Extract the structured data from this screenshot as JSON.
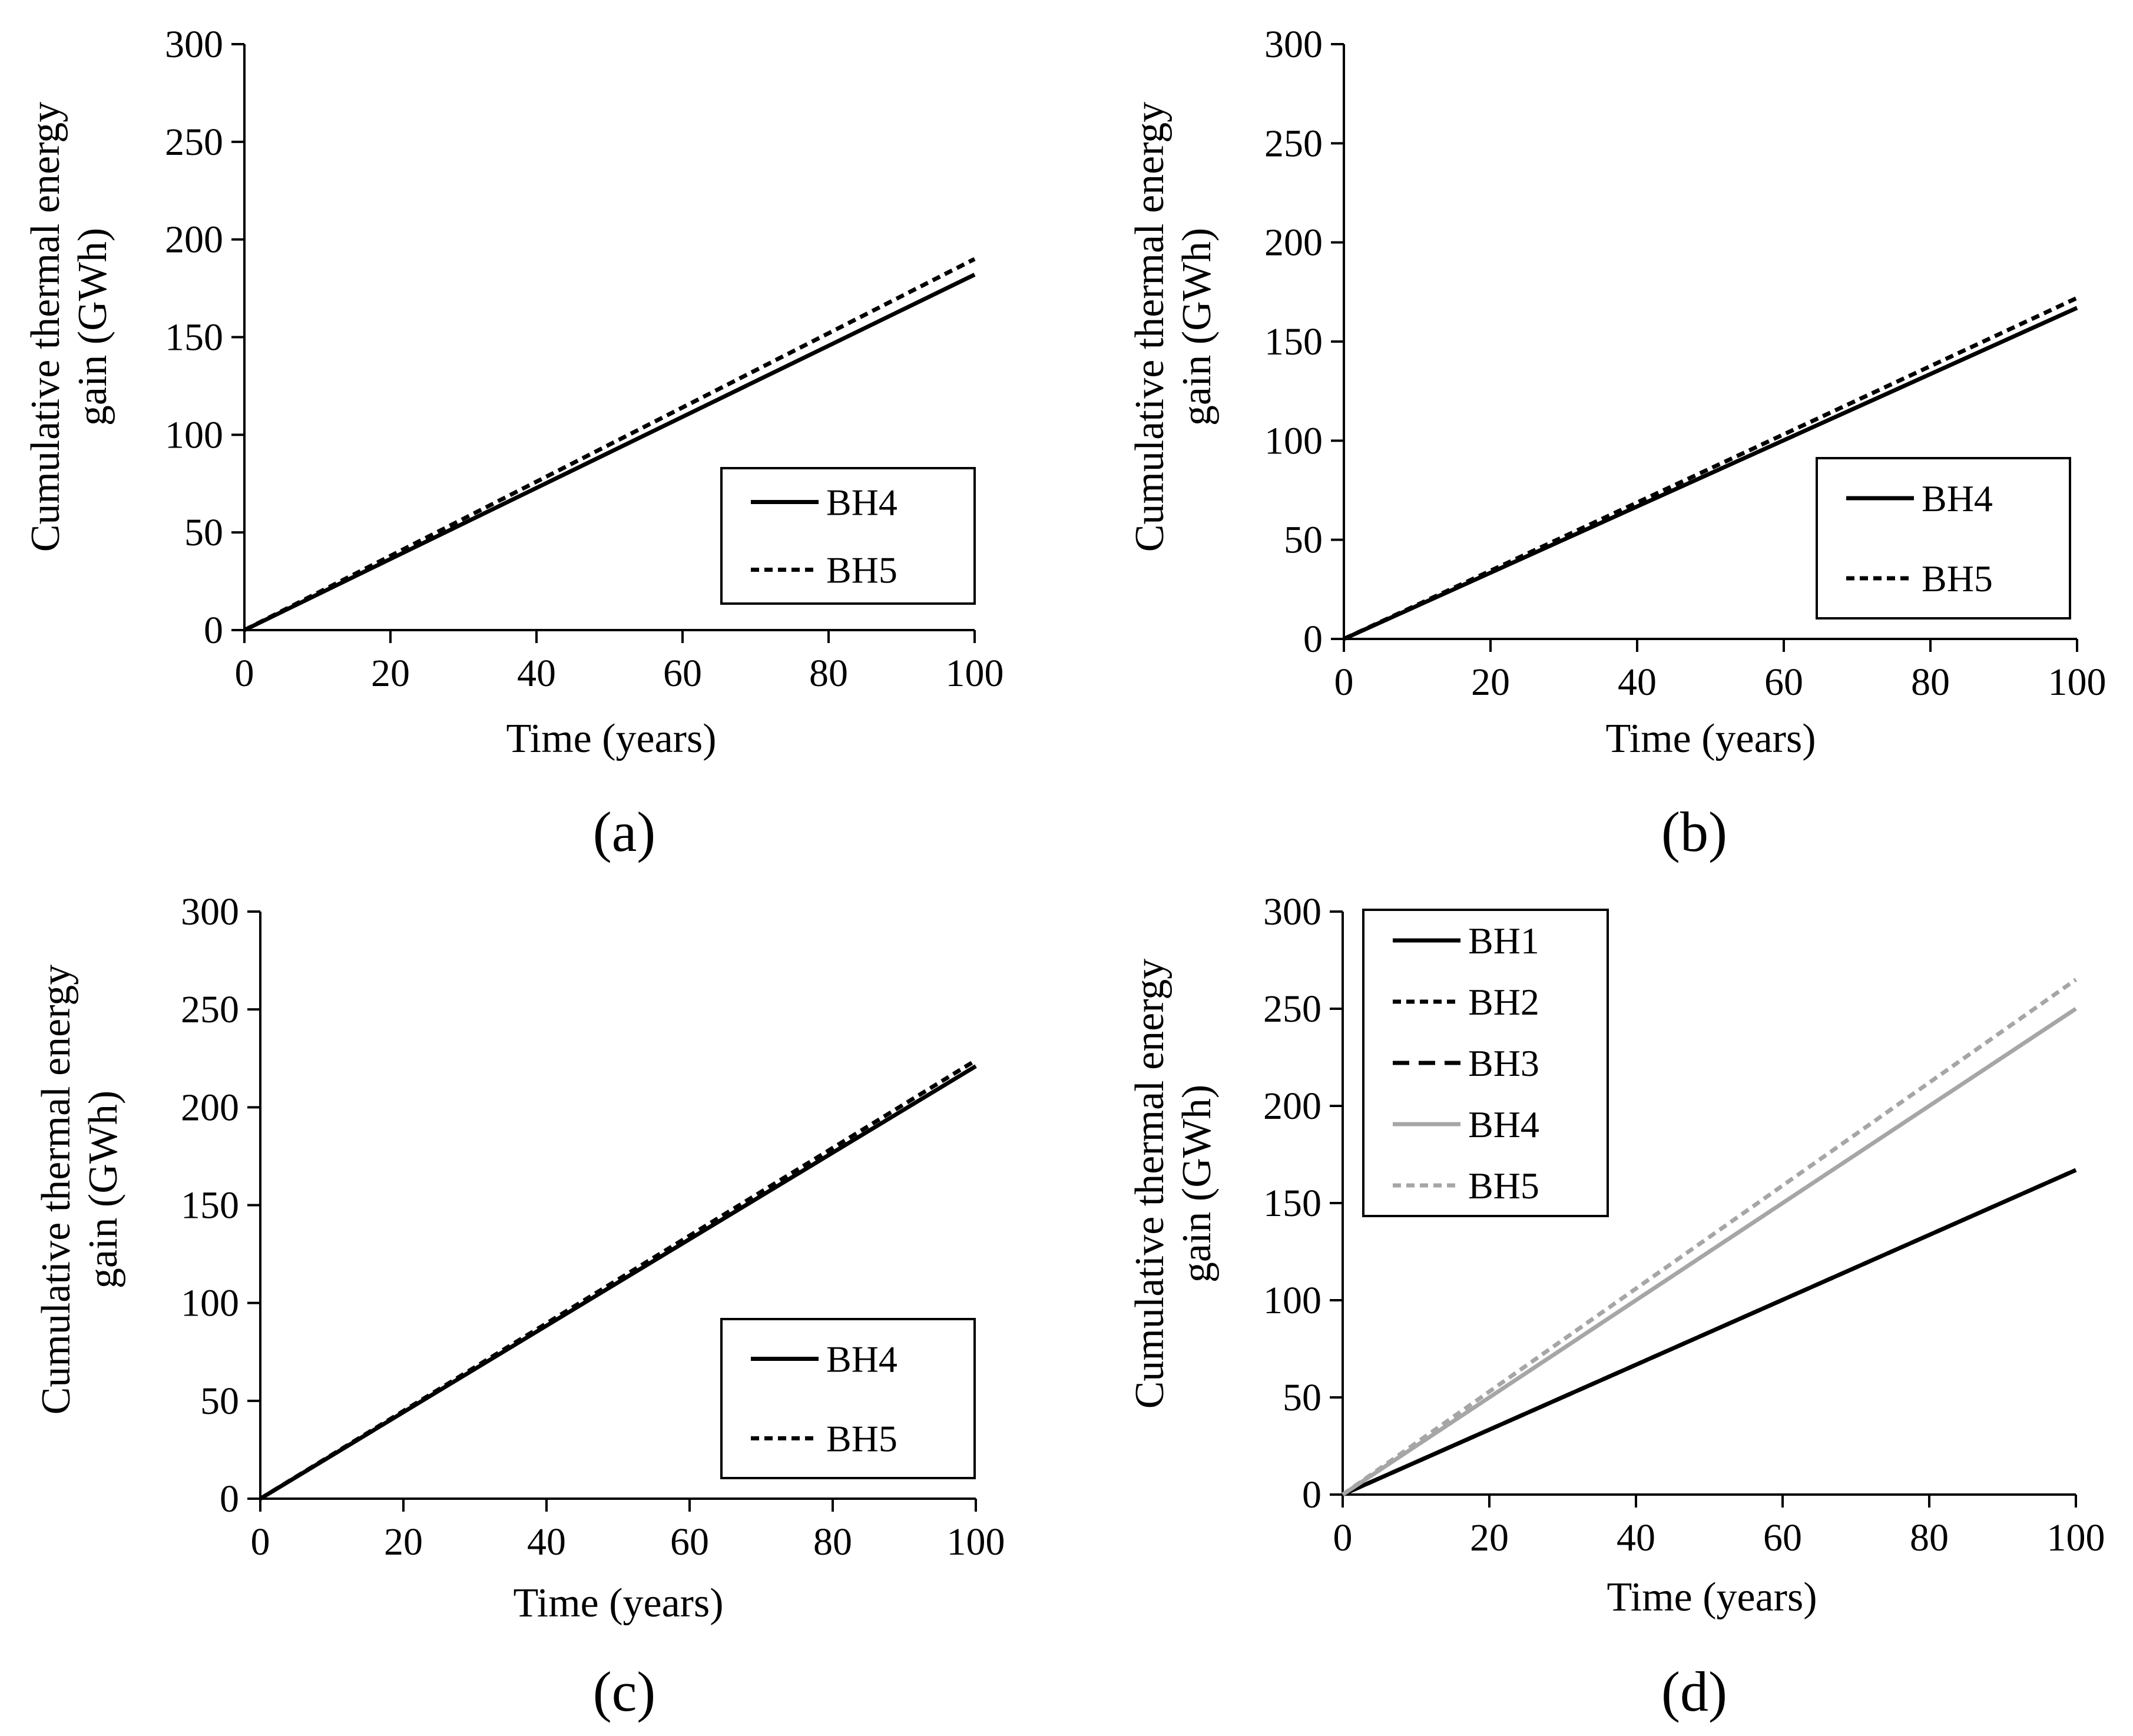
{
  "chart_data": [
    {
      "type": "line",
      "panel_label": "(a)",
      "xlabel": "Time (years)",
      "ylabel_lines": [
        "Cumulative thermal energy",
        "gain (GWh)"
      ],
      "xlim": [
        0,
        100
      ],
      "ylim": [
        0,
        300
      ],
      "xticks": [
        "0",
        "20",
        "40",
        "60",
        "80",
        "100"
      ],
      "yticks": [
        "0",
        "50",
        "100",
        "150",
        "200",
        "250",
        "300"
      ],
      "legend_position": "bottom-right",
      "series": [
        {
          "name": "BH4",
          "x": [
            0,
            100
          ],
          "y": [
            0,
            182
          ],
          "color": "#000000",
          "style": "solid"
        },
        {
          "name": "BH5",
          "x": [
            0,
            100
          ],
          "y": [
            0,
            190
          ],
          "color": "#000000",
          "style": "dotted"
        }
      ]
    },
    {
      "type": "line",
      "panel_label": "(b)",
      "xlabel": "Time (years)",
      "ylabel_lines": [
        "Cumulative thermal energy",
        "gain (GWh)"
      ],
      "xlim": [
        0,
        100
      ],
      "ylim": [
        0,
        300
      ],
      "xticks": [
        "0",
        "20",
        "40",
        "60",
        "80",
        "100"
      ],
      "yticks": [
        "0",
        "50",
        "100",
        "150",
        "200",
        "250",
        "300"
      ],
      "legend_position": "bottom-right",
      "series": [
        {
          "name": "BH4",
          "x": [
            0,
            100
          ],
          "y": [
            0,
            167
          ],
          "color": "#000000",
          "style": "solid"
        },
        {
          "name": "BH5",
          "x": [
            0,
            100
          ],
          "y": [
            0,
            172
          ],
          "color": "#000000",
          "style": "dotted"
        }
      ]
    },
    {
      "type": "line",
      "panel_label": "(c)",
      "xlabel": "Time (years)",
      "ylabel_lines": [
        "Cumulative thermal energy",
        "gain (GWh)"
      ],
      "xlim": [
        0,
        100
      ],
      "ylim": [
        0,
        300
      ],
      "xticks": [
        "0",
        "20",
        "40",
        "60",
        "80",
        "100"
      ],
      "yticks": [
        "0",
        "50",
        "100",
        "150",
        "200",
        "250",
        "300"
      ],
      "legend_position": "bottom-right",
      "series": [
        {
          "name": "BH4",
          "x": [
            0,
            100
          ],
          "y": [
            0,
            221
          ],
          "color": "#000000",
          "style": "solid"
        },
        {
          "name": "BH5",
          "x": [
            0,
            100
          ],
          "y": [
            0,
            224
          ],
          "color": "#000000",
          "style": "dotted"
        }
      ]
    },
    {
      "type": "line",
      "panel_label": "(d)",
      "xlabel": "Time (years)",
      "ylabel_lines": [
        "Cumulative thermal energy",
        "gain (GWh)"
      ],
      "xlim": [
        0,
        100
      ],
      "ylim": [
        0,
        300
      ],
      "xticks": [
        "0",
        "20",
        "40",
        "60",
        "80",
        "100"
      ],
      "yticks": [
        "0",
        "50",
        "100",
        "150",
        "200",
        "250",
        "300"
      ],
      "legend_position": "top-left",
      "series": [
        {
          "name": "BH1",
          "x": [
            0,
            100
          ],
          "y": [
            0,
            167
          ],
          "color": "#000000",
          "style": "solid"
        },
        {
          "name": "BH2",
          "x": [
            0,
            100
          ],
          "y": [
            0,
            167
          ],
          "color": "#000000",
          "style": "dotted"
        },
        {
          "name": "BH3",
          "x": [
            0,
            100
          ],
          "y": [
            0,
            167
          ],
          "color": "#000000",
          "style": "dashed"
        },
        {
          "name": "BH4",
          "x": [
            0,
            100
          ],
          "y": [
            0,
            250
          ],
          "color": "#a6a6a6",
          "style": "solid"
        },
        {
          "name": "BH5",
          "x": [
            0,
            100
          ],
          "y": [
            0,
            265
          ],
          "color": "#a6a6a6",
          "style": "dotted"
        }
      ]
    }
  ]
}
